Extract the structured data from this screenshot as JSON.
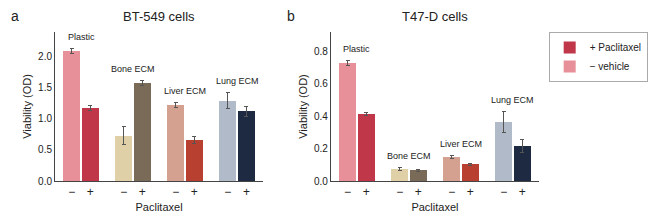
{
  "chart_data": [
    {
      "type": "bar",
      "title": "BT-549 cells",
      "label": "a",
      "x_label": "Paclitaxel",
      "y_label": "Viability (OD)",
      "categories": [
        "−",
        "+",
        "−",
        "+",
        "−",
        "+",
        "−",
        "+"
      ],
      "series": [
        {
          "name": "+ Paclitaxel",
          "values": [
            null,
            1.18,
            null,
            1.58,
            null,
            0.66,
            null,
            1.12
          ],
          "errors": [
            null,
            0.04,
            null,
            0.04,
            null,
            0.06,
            null,
            0.08
          ],
          "colors": [
            null,
            "#c0374a",
            null,
            "#7a6a58",
            null,
            "#b84030",
            null,
            "#1e2a42"
          ]
        },
        {
          "name": "− vehicle",
          "values": [
            2.09,
            null,
            0.73,
            null,
            1.22,
            null,
            1.29,
            null
          ],
          "errors": [
            0.04,
            null,
            0.14,
            null,
            0.04,
            null,
            0.13,
            null
          ],
          "colors": [
            "#e8909a",
            null,
            "#e0d0a8",
            null,
            "#d4a090",
            null,
            "#b0bac8",
            null
          ]
        }
      ],
      "annotations": [
        {
          "text": "Plastic",
          "x": [
            0,
            1
          ]
        },
        {
          "text": "Bone ECM",
          "x": [
            2,
            3
          ]
        },
        {
          "text": "Liver ECM",
          "x": [
            4,
            5
          ]
        },
        {
          "text": "Lung ECM",
          "x": [
            6,
            7
          ]
        }
      ],
      "ylim": [
        0,
        2.4
      ],
      "yticks": [
        {
          "value": 0,
          "label": "0.0"
        },
        0.5,
        {
          "value": 1,
          "label": "1.0"
        },
        1.5,
        {
          "value": 2,
          "label": "2.0"
        }
      ],
      "grid": false
    },
    {
      "type": "bar",
      "title": "T47-D cells",
      "label": "b",
      "x_label": "Paclitaxel",
      "y_label": "Viability (OD)",
      "categories": [
        "−",
        "+",
        "−",
        "+",
        "−",
        "+",
        "−",
        "+"
      ],
      "series": [
        {
          "name": "+ Paclitaxel",
          "values": [
            null,
            0.415,
            null,
            0.065,
            null,
            0.103,
            null,
            0.215
          ],
          "errors": [
            null,
            0.01,
            null,
            0.006,
            null,
            0.008,
            null,
            0.04
          ],
          "colors": [
            null,
            "#c0374a",
            null,
            "#7a6a58",
            null,
            "#b84030",
            null,
            "#1e2a42"
          ]
        },
        {
          "name": "− vehicle",
          "values": [
            0.73,
            null,
            0.075,
            null,
            0.148,
            null,
            0.365,
            null
          ],
          "errors": [
            0.015,
            null,
            0.008,
            null,
            0.01,
            null,
            0.065,
            null
          ],
          "colors": [
            "#e8909a",
            null,
            "#e0d0a8",
            null,
            "#d4a090",
            null,
            "#b0bac8",
            null
          ]
        }
      ],
      "annotations": [
        {
          "text": "Plastic",
          "x": [
            0,
            1
          ]
        },
        {
          "text": "Bone ECM",
          "x": [
            2,
            3
          ]
        },
        {
          "text": "Liver ECM",
          "x": [
            4,
            5
          ]
        },
        {
          "text": "Lung ECM",
          "x": [
            6,
            7
          ]
        }
      ],
      "ylim": [
        0,
        0.92
      ],
      "yticks": [
        {
          "value": 0,
          "label": "0.0"
        },
        0.2,
        0.4,
        0.6,
        0.8
      ],
      "grid": false,
      "legend": "right"
    }
  ]
}
